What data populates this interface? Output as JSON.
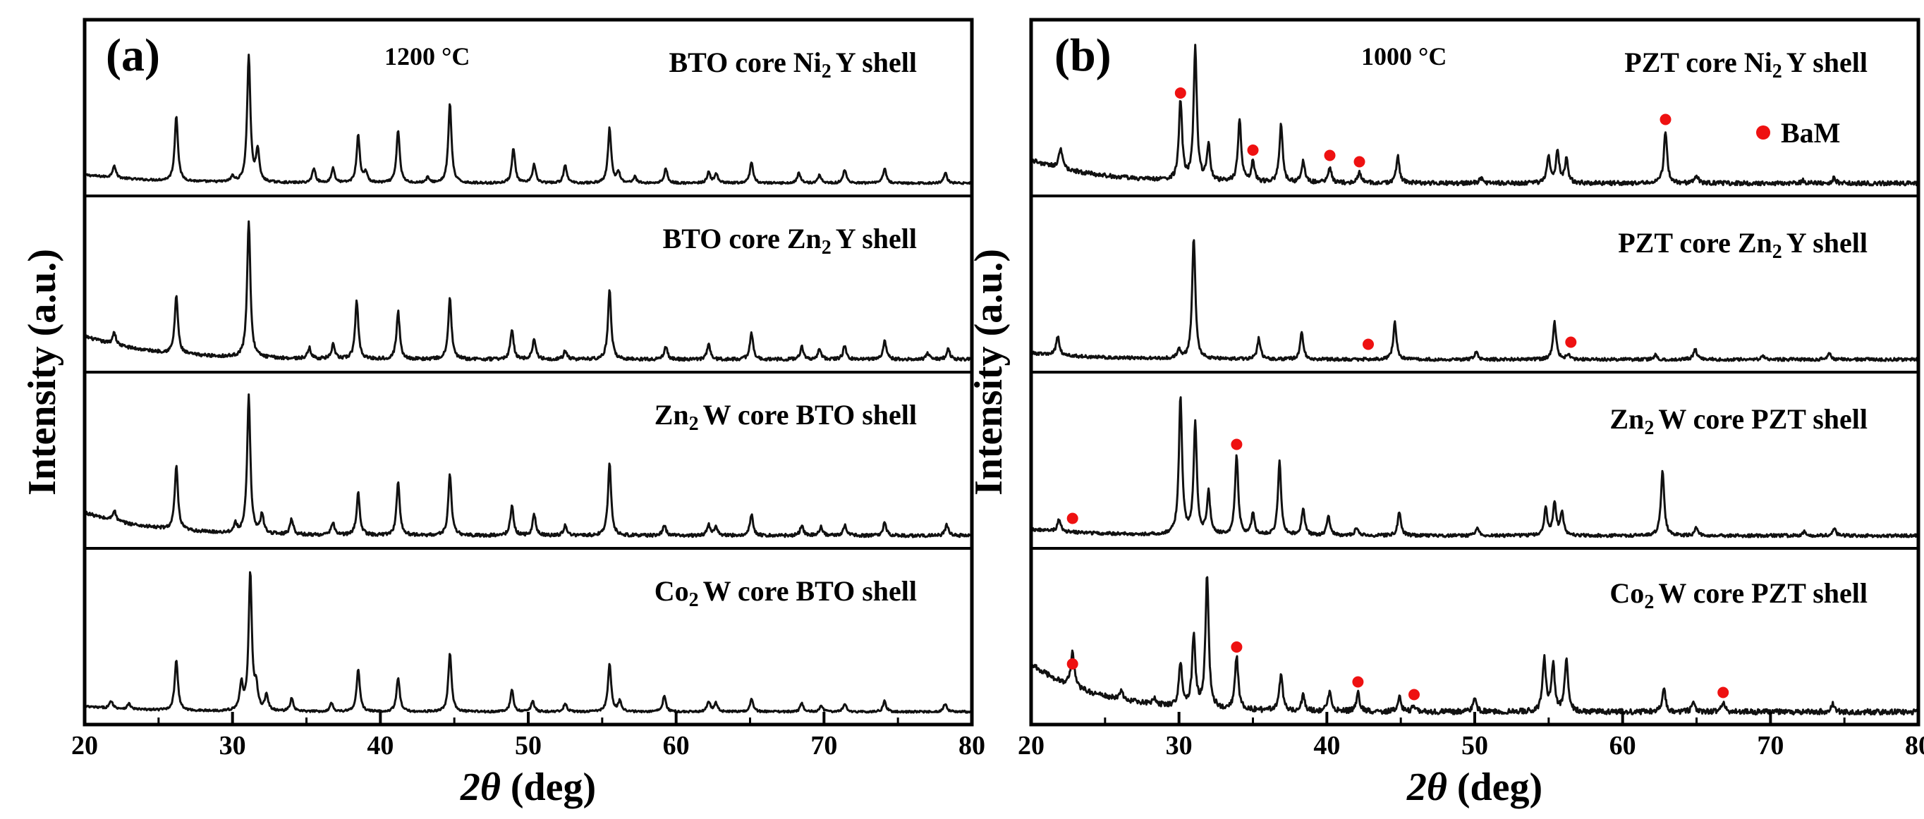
{
  "figure": {
    "ylabel": "Intensity (a.u.)",
    "xlabel_symbol": "2θ",
    "xlabel_unit": " (deg)"
  },
  "chart_data": [
    {
      "type": "line",
      "panel": "(a)",
      "temperature": "1200 °C",
      "xlim": [
        20,
        80
      ],
      "x_ticks": [
        "20",
        "30",
        "40",
        "50",
        "60",
        "70",
        "80"
      ],
      "xlabel": "2θ (deg)",
      "ylabel": "Intensity (a.u.)",
      "series": [
        {
          "name": "BTO core Ni2Y shell",
          "label_main": "BTO core Ni",
          "label_sub": "2",
          "label_rest": "Y shell",
          "background": [
            0.08,
            0.02
          ],
          "peaks": [
            [
              22.0,
              0.12
            ],
            [
              26.2,
              0.62
            ],
            [
              30.0,
              0.05
            ],
            [
              31.1,
              1.2
            ],
            [
              31.7,
              0.3
            ],
            [
              35.5,
              0.14
            ],
            [
              36.8,
              0.14
            ],
            [
              38.5,
              0.45
            ],
            [
              39.0,
              0.1
            ],
            [
              41.2,
              0.5
            ],
            [
              43.2,
              0.05
            ],
            [
              44.7,
              0.75
            ],
            [
              49.0,
              0.33
            ],
            [
              50.4,
              0.18
            ],
            [
              52.5,
              0.17
            ],
            [
              55.5,
              0.52
            ],
            [
              56.1,
              0.1
            ],
            [
              57.2,
              0.06
            ],
            [
              59.3,
              0.14
            ],
            [
              62.2,
              0.1
            ],
            [
              62.7,
              0.09
            ],
            [
              65.1,
              0.2
            ],
            [
              68.3,
              0.1
            ],
            [
              69.7,
              0.08
            ],
            [
              71.4,
              0.13
            ],
            [
              74.1,
              0.14
            ],
            [
              78.2,
              0.1
            ]
          ]
        },
        {
          "name": "BTO core Zn2Y shell",
          "label_main": "BTO core Zn",
          "label_sub": "2",
          "label_rest": "Y shell",
          "background": [
            0.22,
            0.03
          ],
          "peaks": [
            [
              22.0,
              0.12
            ],
            [
              26.2,
              0.55
            ],
            [
              31.1,
              1.3
            ],
            [
              35.2,
              0.1
            ],
            [
              36.8,
              0.13
            ],
            [
              38.4,
              0.55
            ],
            [
              41.2,
              0.45
            ],
            [
              44.7,
              0.58
            ],
            [
              48.9,
              0.28
            ],
            [
              50.4,
              0.2
            ],
            [
              52.5,
              0.08
            ],
            [
              55.5,
              0.65
            ],
            [
              59.3,
              0.12
            ],
            [
              62.2,
              0.14
            ],
            [
              65.1,
              0.25
            ],
            [
              68.5,
              0.12
            ],
            [
              69.7,
              0.1
            ],
            [
              71.4,
              0.13
            ],
            [
              74.1,
              0.18
            ],
            [
              77.0,
              0.06
            ],
            [
              78.4,
              0.1
            ]
          ]
        },
        {
          "name": "Zn2W core BTO shell",
          "label_main": "Zn",
          "label_sub": "2",
          "label_rest": "W core BTO shell",
          "background": [
            0.22,
            0.03
          ],
          "peaks": [
            [
              22.0,
              0.1
            ],
            [
              26.2,
              0.6
            ],
            [
              30.2,
              0.08
            ],
            [
              31.1,
              1.3
            ],
            [
              32.0,
              0.18
            ],
            [
              34.0,
              0.15
            ],
            [
              36.8,
              0.12
            ],
            [
              38.5,
              0.4
            ],
            [
              41.2,
              0.5
            ],
            [
              44.7,
              0.58
            ],
            [
              48.9,
              0.28
            ],
            [
              50.4,
              0.2
            ],
            [
              52.5,
              0.1
            ],
            [
              55.5,
              0.68
            ],
            [
              59.2,
              0.1
            ],
            [
              62.2,
              0.1
            ],
            [
              62.7,
              0.08
            ],
            [
              65.1,
              0.2
            ],
            [
              68.5,
              0.1
            ],
            [
              69.8,
              0.08
            ],
            [
              71.4,
              0.1
            ],
            [
              74.1,
              0.12
            ],
            [
              78.3,
              0.1
            ]
          ]
        },
        {
          "name": "Co2W core BTO shell",
          "label_main": "Co",
          "label_sub": "2",
          "label_rest": "W core BTO shell",
          "background": [
            0.05,
            0.02
          ],
          "peaks": [
            [
              21.8,
              0.07
            ],
            [
              23.0,
              0.05
            ],
            [
              26.2,
              0.48
            ],
            [
              30.6,
              0.25
            ],
            [
              31.2,
              1.3
            ],
            [
              31.6,
              0.2
            ],
            [
              32.3,
              0.15
            ],
            [
              34.0,
              0.12
            ],
            [
              36.7,
              0.08
            ],
            [
              38.5,
              0.4
            ],
            [
              41.2,
              0.32
            ],
            [
              44.7,
              0.55
            ],
            [
              48.9,
              0.2
            ],
            [
              50.3,
              0.1
            ],
            [
              52.5,
              0.08
            ],
            [
              55.5,
              0.45
            ],
            [
              56.2,
              0.1
            ],
            [
              59.2,
              0.15
            ],
            [
              62.2,
              0.1
            ],
            [
              62.7,
              0.08
            ],
            [
              65.1,
              0.12
            ],
            [
              68.5,
              0.08
            ],
            [
              69.8,
              0.06
            ],
            [
              71.4,
              0.08
            ],
            [
              74.1,
              0.1
            ],
            [
              78.2,
              0.08
            ]
          ]
        }
      ]
    },
    {
      "type": "line",
      "panel": "(b)",
      "temperature": "1000 °C",
      "xlim": [
        20,
        80
      ],
      "x_ticks": [
        "20",
        "30",
        "40",
        "50",
        "60",
        "70",
        "80"
      ],
      "xlabel": "2θ (deg)",
      "ylabel": "Intensity (a.u.)",
      "legend": {
        "label": "BaM",
        "marker": "red-dot",
        "color": "#ee1111",
        "placement": "top-right"
      },
      "series": [
        {
          "name": "PZT core Ni2Y shell",
          "label_main": "PZT core Ni",
          "label_sub": "2",
          "label_rest": "Y shell",
          "background": [
            0.22,
            0.04
          ],
          "peaks": [
            [
              22.0,
              0.2
            ],
            [
              30.1,
              0.75
            ],
            [
              31.1,
              1.25
            ],
            [
              32.0,
              0.35
            ],
            [
              34.1,
              0.6
            ],
            [
              35.0,
              0.2
            ],
            [
              36.9,
              0.55
            ],
            [
              38.4,
              0.2
            ],
            [
              40.2,
              0.15
            ],
            [
              42.2,
              0.1
            ],
            [
              44.8,
              0.25
            ],
            [
              50.4,
              0.05
            ],
            [
              55.0,
              0.25
            ],
            [
              55.6,
              0.3
            ],
            [
              56.2,
              0.22
            ],
            [
              62.9,
              0.5
            ],
            [
              65.0,
              0.07
            ],
            [
              72.2,
              0.03
            ],
            [
              74.3,
              0.05
            ]
          ],
          "bam_markers": [
            [
              30.1,
              0.76
            ],
            [
              35.0,
              0.22
            ],
            [
              40.2,
              0.17
            ],
            [
              42.2,
              0.11
            ],
            [
              62.9,
              0.51
            ]
          ]
        },
        {
          "name": "PZT core Zn2Y shell",
          "label_main": "PZT core Zn",
          "label_sub": "2",
          "label_rest": "Y shell",
          "background": [
            0.06,
            0.03
          ],
          "peaks": [
            [
              21.8,
              0.18
            ],
            [
              30.0,
              0.08
            ],
            [
              31.0,
              1.15
            ],
            [
              35.4,
              0.2
            ],
            [
              38.3,
              0.25
            ],
            [
              44.6,
              0.35
            ],
            [
              50.1,
              0.07
            ],
            [
              55.4,
              0.35
            ],
            [
              56.3,
              0.05
            ],
            [
              62.2,
              0.04
            ],
            [
              64.9,
              0.1
            ],
            [
              69.5,
              0.03
            ],
            [
              74.0,
              0.06
            ]
          ],
          "bam_markers": [
            [
              42.8,
              0.05
            ],
            [
              56.5,
              0.07
            ]
          ]
        },
        {
          "name": "Zn2W core PZT shell",
          "label_main": "Zn",
          "label_sub": "2",
          "label_rest": "W core PZT shell",
          "background": [
            0.06,
            0.03
          ],
          "peaks": [
            [
              21.9,
              0.12
            ],
            [
              30.1,
              1.3
            ],
            [
              31.1,
              1.05
            ],
            [
              32.0,
              0.4
            ],
            [
              33.9,
              0.75
            ],
            [
              35.0,
              0.2
            ],
            [
              36.8,
              0.7
            ],
            [
              38.4,
              0.25
            ],
            [
              40.1,
              0.18
            ],
            [
              42.0,
              0.07
            ],
            [
              44.9,
              0.22
            ],
            [
              50.2,
              0.07
            ],
            [
              54.8,
              0.25
            ],
            [
              55.4,
              0.3
            ],
            [
              55.9,
              0.22
            ],
            [
              62.7,
              0.62
            ],
            [
              65.0,
              0.08
            ],
            [
              72.3,
              0.04
            ],
            [
              74.3,
              0.07
            ]
          ],
          "bam_markers": [
            [
              22.8,
              0.07
            ],
            [
              33.9,
              0.77
            ]
          ]
        },
        {
          "name": "Co2W core PZT shell",
          "label_main": "Co",
          "label_sub": "2",
          "label_rest": "W core PZT shell",
          "background": [
            0.45,
            0.05
          ],
          "peaks": [
            [
              22.8,
              0.35
            ],
            [
              26.1,
              0.08
            ],
            [
              28.3,
              0.06
            ],
            [
              30.1,
              0.42
            ],
            [
              31.0,
              0.68
            ],
            [
              31.9,
              1.25
            ],
            [
              33.9,
              0.5
            ],
            [
              36.9,
              0.35
            ],
            [
              38.4,
              0.15
            ],
            [
              40.2,
              0.2
            ],
            [
              42.1,
              0.18
            ],
            [
              44.9,
              0.14
            ],
            [
              45.9,
              0.06
            ],
            [
              50.0,
              0.12
            ],
            [
              54.7,
              0.5
            ],
            [
              55.3,
              0.45
            ],
            [
              56.2,
              0.52
            ],
            [
              62.8,
              0.22
            ],
            [
              64.8,
              0.1
            ],
            [
              66.8,
              0.08
            ],
            [
              74.2,
              0.08
            ]
          ],
          "bam_markers": [
            [
              22.8,
              0.36
            ],
            [
              33.9,
              0.52
            ],
            [
              42.1,
              0.19
            ],
            [
              45.9,
              0.07
            ],
            [
              66.8,
              0.09
            ]
          ]
        }
      ]
    }
  ]
}
